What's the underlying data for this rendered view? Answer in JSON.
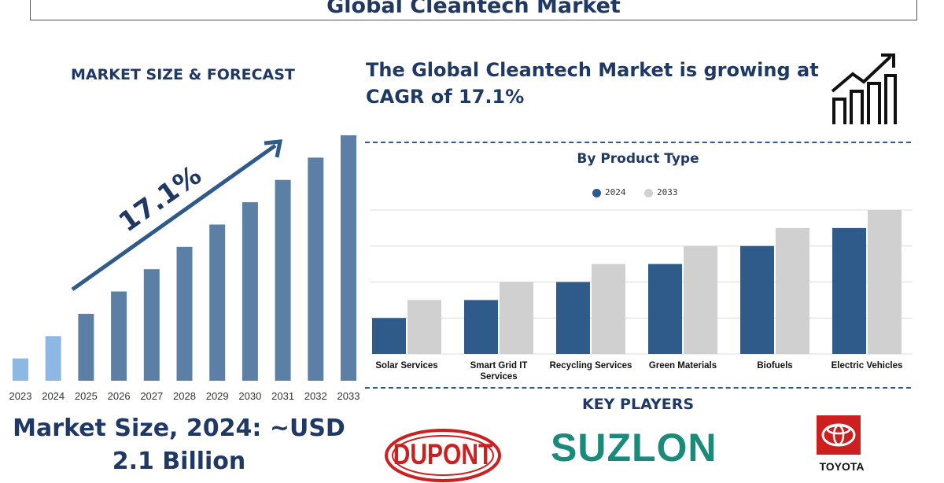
{
  "header": {
    "title": "Global Cleantech Market"
  },
  "left": {
    "section_label": "MARKET SIZE & FORECAST",
    "cagr_label": "17.1%",
    "market_size_text": "Market Size, 2024: ~USD 2.1 Billion"
  },
  "right": {
    "headline": "The Global Cleantech Market is growing at CAGR of 17.1%",
    "key_players_label": "KEY PLAYERS",
    "players": [
      "DUPONT",
      "SUZLON",
      "TOYOTA"
    ]
  },
  "colors": {
    "navy": "#1f3864",
    "bar_forecast": "#5b7fa5",
    "bar_history": "#8db8e3",
    "series_2024": "#2e5b8a",
    "series_2033": "#d0d0d0",
    "toyota_red": "#cc1f1f",
    "suzlon_green": "#1a8a7a"
  },
  "chart_data": [
    {
      "type": "bar",
      "title": "",
      "categories": [
        "2023",
        "2024",
        "2025",
        "2026",
        "2027",
        "2028",
        "2029",
        "2030",
        "2031",
        "2032",
        "2033"
      ],
      "values": [
        1.0,
        2.0,
        3.0,
        4.0,
        5.0,
        6.0,
        7.0,
        8.0,
        9.0,
        10.0,
        11.0
      ],
      "highlight_categories": [
        "2023",
        "2024"
      ],
      "annotation": "17.1%"
    },
    {
      "type": "bar",
      "title": "By Product Type",
      "categories": [
        "Solar Services",
        "Smart Grid IT Services",
        "Recycling Services",
        "Green Materials",
        "Biofuels",
        "Electric Vehicles"
      ],
      "series": [
        {
          "name": "2024",
          "values": [
            1.0,
            1.5,
            2.0,
            2.5,
            3.0,
            3.5
          ]
        },
        {
          "name": "2033",
          "values": [
            1.5,
            2.0,
            2.5,
            3.0,
            3.5,
            4.0
          ]
        }
      ],
      "ylim": [
        0,
        4
      ],
      "grid": true,
      "legend": "top-center"
    }
  ]
}
